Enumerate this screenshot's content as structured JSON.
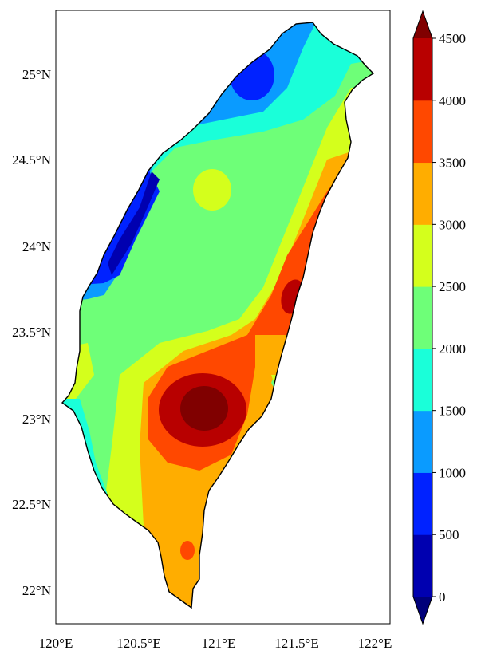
{
  "map": {
    "x_ticks": [
      "120°E",
      "120.5°E",
      "121°E",
      "121.5°E",
      "122°E"
    ],
    "y_ticks": [
      "25°N",
      "24.5°N",
      "24°N",
      "23.5°N",
      "23°N",
      "22.5°N",
      "22°N"
    ]
  },
  "colorbar": {
    "ticks": [
      "0",
      "500",
      "1000",
      "1500",
      "2000",
      "2500",
      "3000",
      "3500",
      "4000",
      "4500"
    ],
    "colors": [
      "#0000b0",
      "#0022ff",
      "#0a9bff",
      "#1affd9",
      "#6eff78",
      "#d4ff1c",
      "#ffad00",
      "#ff4800",
      "#b80000",
      "#800000"
    ],
    "under_color": "#00007a",
    "over_color": "#7a0000"
  },
  "colors": {
    "dark_blue": "#0000b0",
    "blue": "#0022ff",
    "sky_blue": "#0a9bff",
    "cyan": "#1affd9",
    "green": "#6eff78",
    "yellow": "#d4ff1c",
    "orange": "#ffad00",
    "red_orange": "#ff4800",
    "red": "#b80000",
    "dark_red": "#800000"
  }
}
